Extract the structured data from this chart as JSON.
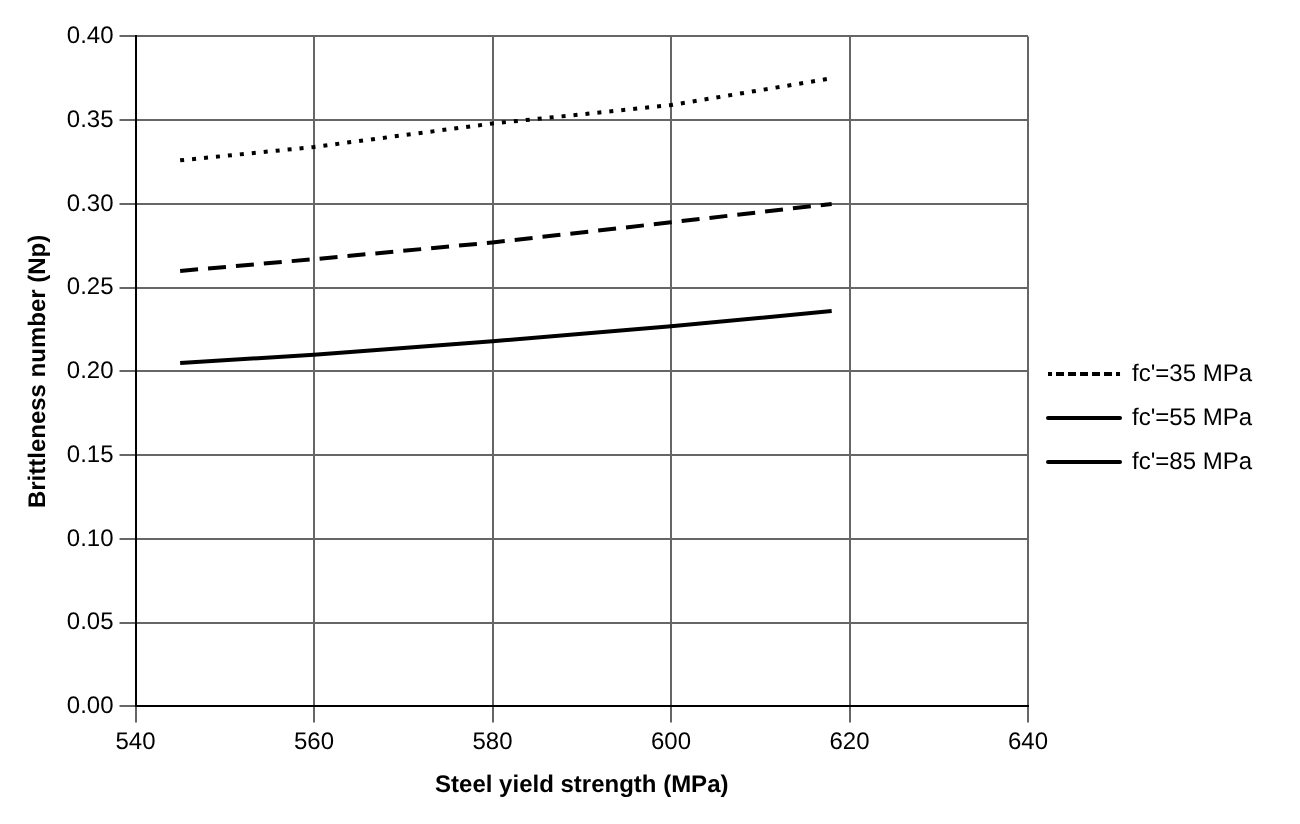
{
  "chart_data": {
    "type": "line",
    "xlabel": "Steel yield strength (MPa)",
    "ylabel": "Brittleness number (Np)",
    "xlim": [
      540,
      640
    ],
    "xticks": [
      540,
      560,
      580,
      600,
      620,
      640
    ],
    "ylim": [
      0,
      0.4
    ],
    "yticks": [
      {
        "value": 0,
        "label": "0.00"
      },
      {
        "value": 0.05,
        "label": "0.05"
      },
      {
        "value": 0.1,
        "label": "0.10"
      },
      {
        "value": 0.15,
        "label": "0.15"
      },
      {
        "value": 0.2,
        "label": "0.20"
      },
      {
        "value": 0.25,
        "label": "0.25"
      },
      {
        "value": 0.3,
        "label": "0.30"
      },
      {
        "value": 0.35,
        "label": "0.35"
      },
      {
        "value": 0.4,
        "label": "0.40"
      }
    ],
    "grid": true,
    "legend": "right",
    "marker": "none",
    "series": [
      {
        "name": "fc'=35 MPa",
        "color": "#000000",
        "line_style": "dotted",
        "x": [
          545,
          560,
          580,
          600,
          618
        ],
        "values": [
          0.326,
          0.334,
          0.348,
          0.359,
          0.375
        ]
      },
      {
        "name": "fc'=55 MPa",
        "color": "#000000",
        "line_style": "dashed",
        "x": [
          545,
          560,
          580,
          600,
          618
        ],
        "values": [
          0.26,
          0.267,
          0.277,
          0.289,
          0.3
        ]
      },
      {
        "name": "fc'=85 MPa",
        "color": "#000000",
        "line_style": "solid",
        "x": [
          545,
          560,
          580,
          600,
          618
        ],
        "values": [
          0.205,
          0.21,
          0.218,
          0.227,
          0.236
        ]
      }
    ]
  }
}
